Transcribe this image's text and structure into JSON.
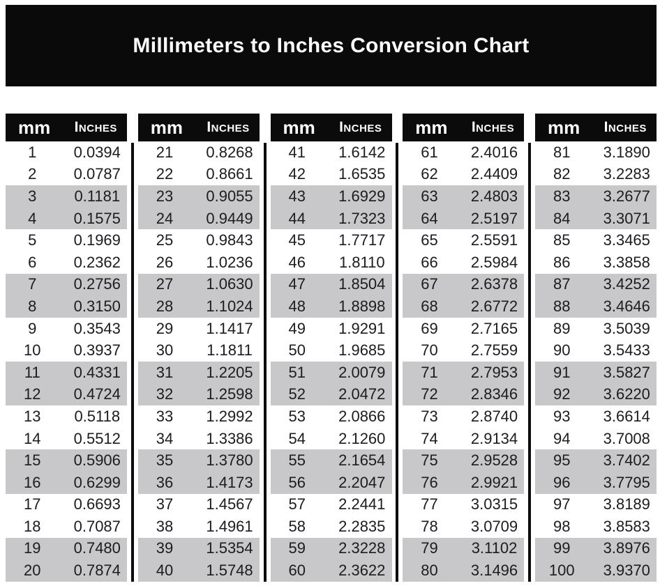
{
  "title": "Millimeters to Inches Conversion Chart",
  "table": {
    "header_mm": "mm",
    "header_inches": "Inches",
    "groups": 5,
    "rows_per_group": 20
  },
  "colors": {
    "banner_bg": "#0a0a0a",
    "header_bg": "#0b0b0b",
    "divider": "#0b0b0b",
    "stripe": "#c8c8ca",
    "text": "#1c1c1c",
    "banner_text": "#ffffff"
  },
  "chart_data": {
    "type": "table",
    "title": "Millimeters to Inches Conversion Chart",
    "columns": [
      "mm",
      "Inches"
    ],
    "layout": "5 column-pairs of 20 rows, gray stripes on alternating row pairs",
    "rows": [
      [
        "1",
        "0.0394"
      ],
      [
        "2",
        "0.0787"
      ],
      [
        "3",
        "0.1181"
      ],
      [
        "4",
        "0.1575"
      ],
      [
        "5",
        "0.1969"
      ],
      [
        "6",
        "0.2362"
      ],
      [
        "7",
        "0.2756"
      ],
      [
        "8",
        "0.3150"
      ],
      [
        "9",
        "0.3543"
      ],
      [
        "10",
        "0.3937"
      ],
      [
        "11",
        "0.4331"
      ],
      [
        "12",
        "0.4724"
      ],
      [
        "13",
        "0.5118"
      ],
      [
        "14",
        "0.5512"
      ],
      [
        "15",
        "0.5906"
      ],
      [
        "16",
        "0.6299"
      ],
      [
        "17",
        "0.6693"
      ],
      [
        "18",
        "0.7087"
      ],
      [
        "19",
        "0.7480"
      ],
      [
        "20",
        "0.7874"
      ],
      [
        "21",
        "0.8268"
      ],
      [
        "22",
        "0.8661"
      ],
      [
        "23",
        "0.9055"
      ],
      [
        "24",
        "0.9449"
      ],
      [
        "25",
        "0.9843"
      ],
      [
        "26",
        "1.0236"
      ],
      [
        "27",
        "1.0630"
      ],
      [
        "28",
        "1.1024"
      ],
      [
        "29",
        "1.1417"
      ],
      [
        "30",
        "1.1811"
      ],
      [
        "31",
        "1.2205"
      ],
      [
        "32",
        "1.2598"
      ],
      [
        "33",
        "1.2992"
      ],
      [
        "34",
        "1.3386"
      ],
      [
        "35",
        "1.3780"
      ],
      [
        "36",
        "1.4173"
      ],
      [
        "37",
        "1.4567"
      ],
      [
        "38",
        "1.4961"
      ],
      [
        "39",
        "1.5354"
      ],
      [
        "40",
        "1.5748"
      ],
      [
        "41",
        "1.6142"
      ],
      [
        "42",
        "1.6535"
      ],
      [
        "43",
        "1.6929"
      ],
      [
        "44",
        "1.7323"
      ],
      [
        "45",
        "1.7717"
      ],
      [
        "46",
        "1.8110"
      ],
      [
        "47",
        "1.8504"
      ],
      [
        "48",
        "1.8898"
      ],
      [
        "49",
        "1.9291"
      ],
      [
        "50",
        "1.9685"
      ],
      [
        "51",
        "2.0079"
      ],
      [
        "52",
        "2.0472"
      ],
      [
        "53",
        "2.0866"
      ],
      [
        "54",
        "2.1260"
      ],
      [
        "55",
        "2.1654"
      ],
      [
        "56",
        "2.2047"
      ],
      [
        "57",
        "2.2441"
      ],
      [
        "58",
        "2.2835"
      ],
      [
        "59",
        "2.3228"
      ],
      [
        "60",
        "2.3622"
      ],
      [
        "61",
        "2.4016"
      ],
      [
        "62",
        "2.4409"
      ],
      [
        "63",
        "2.4803"
      ],
      [
        "64",
        "2.5197"
      ],
      [
        "65",
        "2.5591"
      ],
      [
        "66",
        "2.5984"
      ],
      [
        "67",
        "2.6378"
      ],
      [
        "68",
        "2.6772"
      ],
      [
        "69",
        "2.7165"
      ],
      [
        "70",
        "2.7559"
      ],
      [
        "71",
        "2.7953"
      ],
      [
        "72",
        "2.8346"
      ],
      [
        "73",
        "2.8740"
      ],
      [
        "74",
        "2.9134"
      ],
      [
        "75",
        "2.9528"
      ],
      [
        "76",
        "2.9921"
      ],
      [
        "77",
        "3.0315"
      ],
      [
        "78",
        "3.0709"
      ],
      [
        "79",
        "3.1102"
      ],
      [
        "80",
        "3.1496"
      ],
      [
        "81",
        "3.1890"
      ],
      [
        "82",
        "3.2283"
      ],
      [
        "83",
        "3.2677"
      ],
      [
        "84",
        "3.3071"
      ],
      [
        "85",
        "3.3465"
      ],
      [
        "86",
        "3.3858"
      ],
      [
        "87",
        "3.4252"
      ],
      [
        "88",
        "3.4646"
      ],
      [
        "89",
        "3.5039"
      ],
      [
        "90",
        "3.5433"
      ],
      [
        "91",
        "3.5827"
      ],
      [
        "92",
        "3.6220"
      ],
      [
        "93",
        "3.6614"
      ],
      [
        "94",
        "3.7008"
      ],
      [
        "95",
        "3.7402"
      ],
      [
        "96",
        "3.7795"
      ],
      [
        "97",
        "3.8189"
      ],
      [
        "98",
        "3.8583"
      ],
      [
        "99",
        "3.8976"
      ],
      [
        "100",
        "3.9370"
      ]
    ]
  }
}
